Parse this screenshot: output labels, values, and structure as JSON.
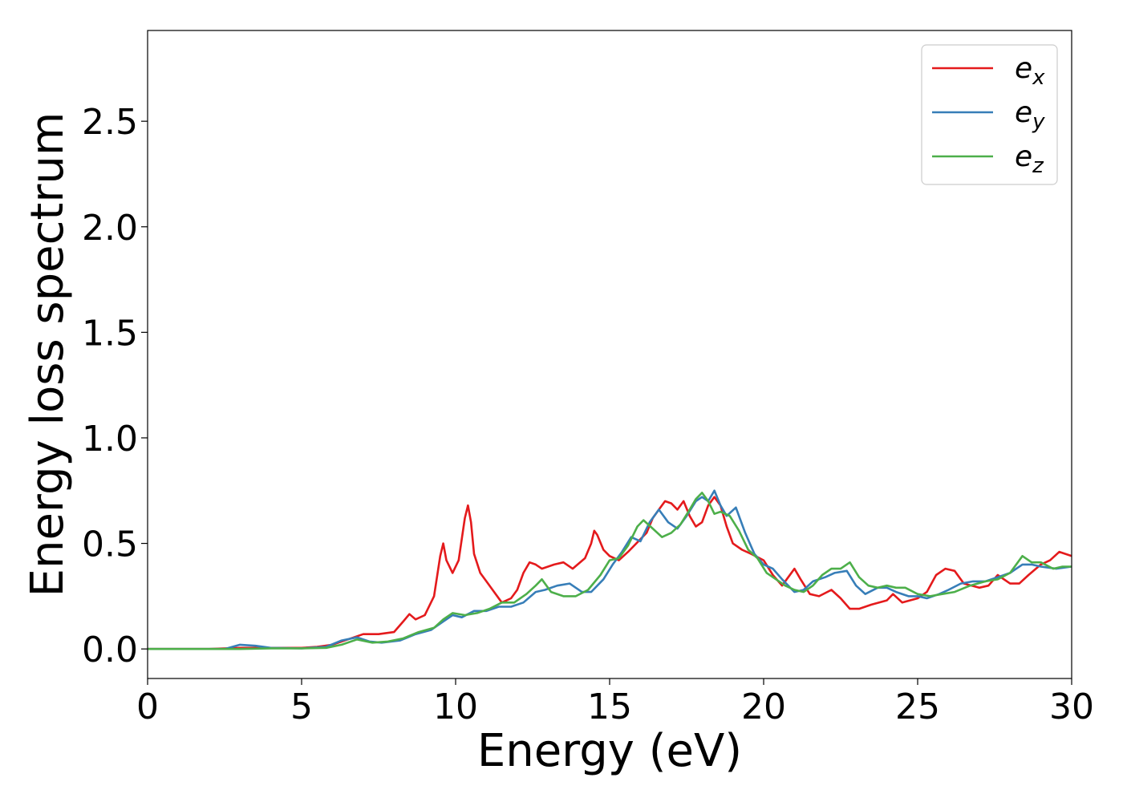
{
  "chart_data": {
    "type": "line",
    "title": "",
    "xlabel": "Energy (eV)",
    "ylabel": "Energy loss spectrum",
    "xlim": [
      0,
      30
    ],
    "ylim": [
      -0.14,
      2.93
    ],
    "xticks": [
      0,
      5,
      10,
      15,
      20,
      25,
      30
    ],
    "xtick_labels": [
      "0",
      "5",
      "10",
      "15",
      "20",
      "25",
      "30"
    ],
    "yticks": [
      0.0,
      0.5,
      1.0,
      1.5,
      2.0,
      2.5
    ],
    "ytick_labels": [
      "0.0",
      "0.5",
      "1.0",
      "1.5",
      "2.0",
      "2.5"
    ],
    "grid": false,
    "legend": {
      "position": "top-right"
    },
    "series": [
      {
        "name": "e_x",
        "base": "e",
        "subscript": "x",
        "color": "#e41a1c",
        "points": [
          [
            0,
            0.0
          ],
          [
            2,
            0.0
          ],
          [
            3,
            0.005
          ],
          [
            4,
            0.005
          ],
          [
            5,
            0.005
          ],
          [
            5.5,
            0.01
          ],
          [
            6,
            0.02
          ],
          [
            6.5,
            0.045
          ],
          [
            7,
            0.07
          ],
          [
            7.5,
            0.07
          ],
          [
            8,
            0.08
          ],
          [
            8.3,
            0.13
          ],
          [
            8.5,
            0.165
          ],
          [
            8.7,
            0.14
          ],
          [
            9,
            0.16
          ],
          [
            9.3,
            0.25
          ],
          [
            9.5,
            0.44
          ],
          [
            9.6,
            0.5
          ],
          [
            9.7,
            0.42
          ],
          [
            9.9,
            0.36
          ],
          [
            10.1,
            0.42
          ],
          [
            10.3,
            0.62
          ],
          [
            10.4,
            0.68
          ],
          [
            10.5,
            0.6
          ],
          [
            10.6,
            0.45
          ],
          [
            10.8,
            0.36
          ],
          [
            11,
            0.32
          ],
          [
            11.2,
            0.28
          ],
          [
            11.5,
            0.22
          ],
          [
            11.8,
            0.24
          ],
          [
            12,
            0.28
          ],
          [
            12.2,
            0.36
          ],
          [
            12.4,
            0.41
          ],
          [
            12.6,
            0.4
          ],
          [
            12.8,
            0.38
          ],
          [
            13.2,
            0.4
          ],
          [
            13.5,
            0.41
          ],
          [
            13.8,
            0.38
          ],
          [
            14.2,
            0.43
          ],
          [
            14.4,
            0.5
          ],
          [
            14.5,
            0.56
          ],
          [
            14.6,
            0.54
          ],
          [
            14.8,
            0.47
          ],
          [
            15,
            0.44
          ],
          [
            15.3,
            0.42
          ],
          [
            15.6,
            0.46
          ],
          [
            16,
            0.52
          ],
          [
            16.2,
            0.55
          ],
          [
            16.4,
            0.62
          ],
          [
            16.6,
            0.66
          ],
          [
            16.8,
            0.7
          ],
          [
            17,
            0.69
          ],
          [
            17.2,
            0.66
          ],
          [
            17.4,
            0.7
          ],
          [
            17.6,
            0.63
          ],
          [
            17.8,
            0.58
          ],
          [
            18,
            0.6
          ],
          [
            18.2,
            0.68
          ],
          [
            18.4,
            0.72
          ],
          [
            18.6,
            0.68
          ],
          [
            18.8,
            0.58
          ],
          [
            19,
            0.5
          ],
          [
            19.3,
            0.47
          ],
          [
            19.6,
            0.45
          ],
          [
            20,
            0.42
          ],
          [
            20.3,
            0.35
          ],
          [
            20.6,
            0.3
          ],
          [
            20.8,
            0.34
          ],
          [
            21,
            0.38
          ],
          [
            21.2,
            0.33
          ],
          [
            21.5,
            0.26
          ],
          [
            21.8,
            0.25
          ],
          [
            22.2,
            0.28
          ],
          [
            22.5,
            0.24
          ],
          [
            22.8,
            0.19
          ],
          [
            23.1,
            0.19
          ],
          [
            23.5,
            0.21
          ],
          [
            24,
            0.23
          ],
          [
            24.2,
            0.26
          ],
          [
            24.5,
            0.22
          ],
          [
            25,
            0.24
          ],
          [
            25.3,
            0.27
          ],
          [
            25.6,
            0.35
          ],
          [
            25.9,
            0.38
          ],
          [
            26.2,
            0.37
          ],
          [
            26.5,
            0.31
          ],
          [
            27,
            0.29
          ],
          [
            27.3,
            0.3
          ],
          [
            27.6,
            0.35
          ],
          [
            28,
            0.31
          ],
          [
            28.3,
            0.31
          ],
          [
            28.6,
            0.35
          ],
          [
            29,
            0.4
          ],
          [
            29.3,
            0.42
          ],
          [
            29.6,
            0.46
          ],
          [
            30,
            0.44
          ]
        ]
      },
      {
        "name": "e_y",
        "base": "e",
        "subscript": "y",
        "color": "#377eb8",
        "points": [
          [
            0,
            0.0
          ],
          [
            2.5,
            0.0
          ],
          [
            3,
            0.02
          ],
          [
            3.5,
            0.015
          ],
          [
            4,
            0.005
          ],
          [
            5,
            0.003
          ],
          [
            5.8,
            0.01
          ],
          [
            6.3,
            0.04
          ],
          [
            6.8,
            0.055
          ],
          [
            7.2,
            0.035
          ],
          [
            7.6,
            0.03
          ],
          [
            8.2,
            0.04
          ],
          [
            8.7,
            0.07
          ],
          [
            9.2,
            0.09
          ],
          [
            9.6,
            0.13
          ],
          [
            9.9,
            0.16
          ],
          [
            10.2,
            0.15
          ],
          [
            10.6,
            0.18
          ],
          [
            11,
            0.18
          ],
          [
            11.4,
            0.2
          ],
          [
            11.8,
            0.2
          ],
          [
            12.2,
            0.22
          ],
          [
            12.6,
            0.27
          ],
          [
            12.9,
            0.28
          ],
          [
            13.3,
            0.3
          ],
          [
            13.7,
            0.31
          ],
          [
            14.1,
            0.27
          ],
          [
            14.4,
            0.27
          ],
          [
            14.8,
            0.33
          ],
          [
            15.1,
            0.4
          ],
          [
            15.4,
            0.46
          ],
          [
            15.7,
            0.53
          ],
          [
            16,
            0.51
          ],
          [
            16.3,
            0.6
          ],
          [
            16.6,
            0.66
          ],
          [
            16.9,
            0.6
          ],
          [
            17.2,
            0.57
          ],
          [
            17.5,
            0.63
          ],
          [
            17.8,
            0.7
          ],
          [
            18,
            0.72
          ],
          [
            18.2,
            0.7
          ],
          [
            18.4,
            0.75
          ],
          [
            18.6,
            0.68
          ],
          [
            18.8,
            0.63
          ],
          [
            19.1,
            0.67
          ],
          [
            19.4,
            0.55
          ],
          [
            19.7,
            0.45
          ],
          [
            20,
            0.4
          ],
          [
            20.3,
            0.38
          ],
          [
            20.6,
            0.33
          ],
          [
            21,
            0.27
          ],
          [
            21.3,
            0.28
          ],
          [
            21.6,
            0.32
          ],
          [
            22,
            0.34
          ],
          [
            22.3,
            0.36
          ],
          [
            22.7,
            0.37
          ],
          [
            23,
            0.3
          ],
          [
            23.3,
            0.26
          ],
          [
            23.7,
            0.29
          ],
          [
            24,
            0.29
          ],
          [
            24.3,
            0.27
          ],
          [
            24.7,
            0.25
          ],
          [
            25,
            0.25
          ],
          [
            25.3,
            0.24
          ],
          [
            25.7,
            0.26
          ],
          [
            26,
            0.28
          ],
          [
            26.4,
            0.31
          ],
          [
            26.8,
            0.32
          ],
          [
            27.2,
            0.32
          ],
          [
            27.6,
            0.34
          ],
          [
            28,
            0.36
          ],
          [
            28.4,
            0.4
          ],
          [
            28.7,
            0.4
          ],
          [
            29,
            0.39
          ],
          [
            29.5,
            0.38
          ],
          [
            30,
            0.39
          ]
        ]
      },
      {
        "name": "e_z",
        "base": "e",
        "subscript": "z",
        "color": "#4daf4a",
        "points": [
          [
            0,
            0.0
          ],
          [
            3,
            0.0
          ],
          [
            4,
            0.003
          ],
          [
            5,
            0.003
          ],
          [
            5.8,
            0.005
          ],
          [
            6.3,
            0.02
          ],
          [
            6.8,
            0.045
          ],
          [
            7.3,
            0.03
          ],
          [
            7.8,
            0.035
          ],
          [
            8.3,
            0.05
          ],
          [
            8.8,
            0.08
          ],
          [
            9.3,
            0.1
          ],
          [
            9.6,
            0.14
          ],
          [
            9.9,
            0.17
          ],
          [
            10.3,
            0.16
          ],
          [
            10.7,
            0.17
          ],
          [
            11.1,
            0.19
          ],
          [
            11.5,
            0.22
          ],
          [
            11.9,
            0.22
          ],
          [
            12.3,
            0.26
          ],
          [
            12.6,
            0.3
          ],
          [
            12.8,
            0.33
          ],
          [
            13.1,
            0.27
          ],
          [
            13.5,
            0.25
          ],
          [
            13.9,
            0.25
          ],
          [
            14.3,
            0.28
          ],
          [
            14.7,
            0.35
          ],
          [
            15,
            0.42
          ],
          [
            15.3,
            0.43
          ],
          [
            15.6,
            0.49
          ],
          [
            15.9,
            0.58
          ],
          [
            16.1,
            0.61
          ],
          [
            16.4,
            0.57
          ],
          [
            16.7,
            0.53
          ],
          [
            17,
            0.55
          ],
          [
            17.3,
            0.59
          ],
          [
            17.6,
            0.66
          ],
          [
            17.8,
            0.71
          ],
          [
            18,
            0.74
          ],
          [
            18.2,
            0.7
          ],
          [
            18.4,
            0.64
          ],
          [
            18.6,
            0.65
          ],
          [
            18.9,
            0.63
          ],
          [
            19.2,
            0.56
          ],
          [
            19.5,
            0.47
          ],
          [
            19.8,
            0.43
          ],
          [
            20.1,
            0.36
          ],
          [
            20.4,
            0.33
          ],
          [
            20.7,
            0.3
          ],
          [
            21,
            0.28
          ],
          [
            21.3,
            0.27
          ],
          [
            21.6,
            0.3
          ],
          [
            21.9,
            0.35
          ],
          [
            22.2,
            0.38
          ],
          [
            22.5,
            0.38
          ],
          [
            22.8,
            0.41
          ],
          [
            23.1,
            0.34
          ],
          [
            23.4,
            0.3
          ],
          [
            23.7,
            0.29
          ],
          [
            24,
            0.3
          ],
          [
            24.3,
            0.29
          ],
          [
            24.6,
            0.29
          ],
          [
            25,
            0.26
          ],
          [
            25.4,
            0.25
          ],
          [
            25.8,
            0.26
          ],
          [
            26.2,
            0.27
          ],
          [
            26.7,
            0.3
          ],
          [
            27.2,
            0.32
          ],
          [
            27.6,
            0.33
          ],
          [
            28,
            0.36
          ],
          [
            28.4,
            0.44
          ],
          [
            28.7,
            0.41
          ],
          [
            29,
            0.41
          ],
          [
            29.4,
            0.38
          ],
          [
            29.7,
            0.39
          ],
          [
            30,
            0.39
          ]
        ]
      }
    ]
  }
}
